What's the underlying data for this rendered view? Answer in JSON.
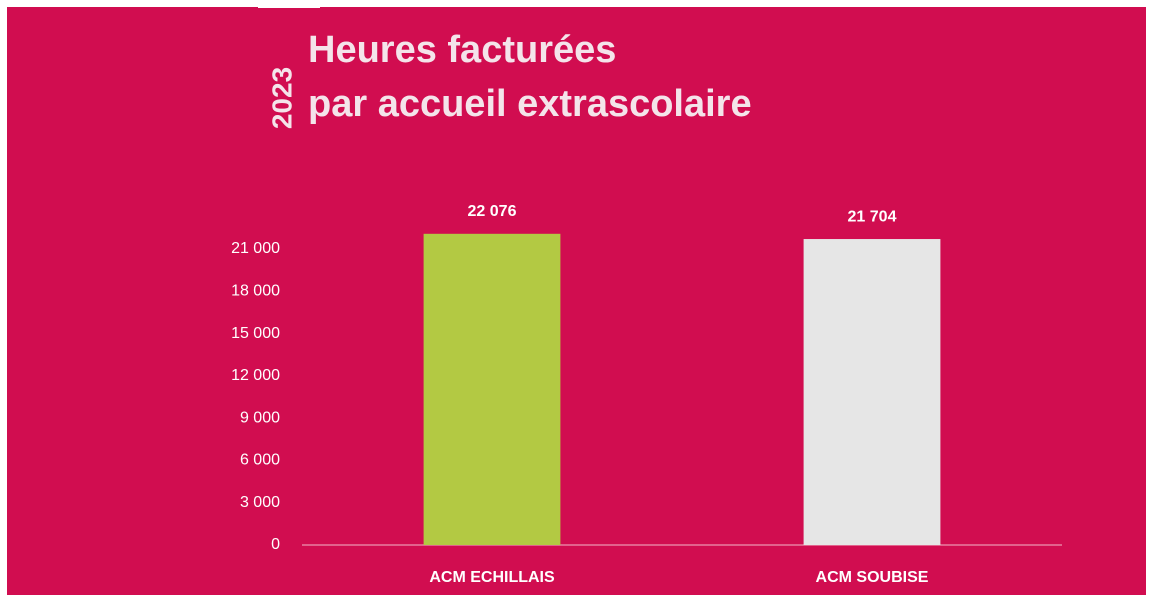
{
  "chart_data": {
    "type": "bar",
    "title": [
      "Heures facturées",
      "par accueil extrascolaire"
    ],
    "year": "2023",
    "categories": [
      "ACM ECHILLAIS",
      "ACM SOUBISE"
    ],
    "values": [
      22076,
      21704
    ],
    "value_labels": [
      "22 076",
      "21 704"
    ],
    "colors": [
      "#b3c943",
      "#e6e6e6"
    ],
    "ylim": [
      0,
      24000
    ],
    "yticks": [
      0,
      {
        "value": 3000,
        "label": "3 000"
      },
      {
        "value": 6000,
        "label": "6 000"
      },
      {
        "value": 9000,
        "label": "9 000"
      },
      {
        "value": 12000,
        "label": "12 000"
      },
      {
        "value": 15000,
        "label": "15 000"
      },
      {
        "value": 18000,
        "label": "18 000"
      },
      {
        "value": 21000,
        "label": "21 000"
      }
    ],
    "grid": false
  }
}
